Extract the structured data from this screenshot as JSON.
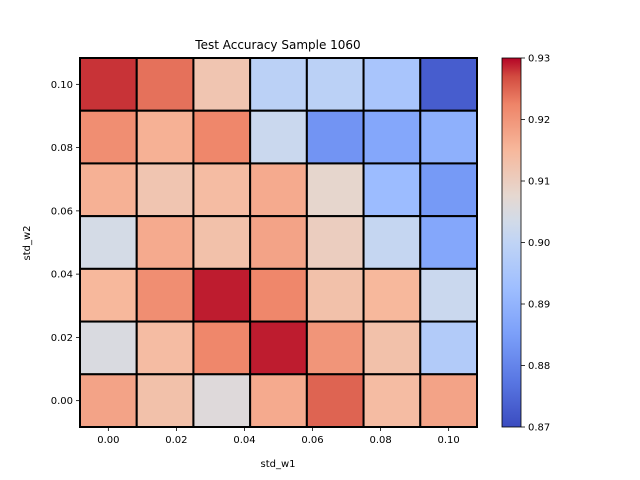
{
  "chart_data": {
    "type": "heatmap",
    "title": "Test Accuracy Sample 1060",
    "xlabel": "std_w1",
    "ylabel": "std_w2",
    "x": [
      0.0,
      0.0167,
      0.0333,
      0.05,
      0.0667,
      0.0833,
      0.1
    ],
    "y": [
      0.0,
      0.0167,
      0.0333,
      0.05,
      0.0667,
      0.0833,
      0.1
    ],
    "x_ticks": [
      "0.00",
      "0.02",
      "0.04",
      "0.06",
      "0.08",
      "0.10"
    ],
    "y_ticks": [
      "0.00",
      "0.02",
      "0.04",
      "0.06",
      "0.08",
      "0.10"
    ],
    "x_tick_values": [
      0.0,
      0.02,
      0.04,
      0.06,
      0.08,
      0.1
    ],
    "y_tick_values": [
      0.0,
      0.02,
      0.04,
      0.06,
      0.08,
      0.1
    ],
    "xlim": [
      -0.00833,
      0.10833
    ],
    "ylim": [
      -0.00833,
      0.10833
    ],
    "values_top_to_bottom": [
      [
        0.928,
        0.924,
        0.912,
        0.899,
        0.899,
        0.895,
        0.873
      ],
      [
        0.921,
        0.916,
        0.922,
        0.902,
        0.883,
        0.887,
        0.889
      ],
      [
        0.916,
        0.912,
        0.914,
        0.917,
        0.908,
        0.892,
        0.884
      ],
      [
        0.904,
        0.917,
        0.913,
        0.918,
        0.91,
        0.901,
        0.887
      ],
      [
        0.915,
        0.921,
        0.929,
        0.922,
        0.913,
        0.915,
        0.902
      ],
      [
        0.905,
        0.914,
        0.922,
        0.929,
        0.92,
        0.913,
        0.897
      ],
      [
        0.918,
        0.913,
        0.906,
        0.917,
        0.925,
        0.914,
        0.918
      ]
    ],
    "colorbar": {
      "colormap": "coolwarm",
      "vmin": 0.87,
      "vmax": 0.93,
      "ticks": [
        "0.87",
        "0.88",
        "0.89",
        "0.90",
        "0.91",
        "0.92",
        "0.93"
      ],
      "tick_values": [
        0.87,
        0.88,
        0.89,
        0.9,
        0.91,
        0.92,
        0.93
      ]
    },
    "grid": false,
    "cell_border_color": "#000000"
  }
}
